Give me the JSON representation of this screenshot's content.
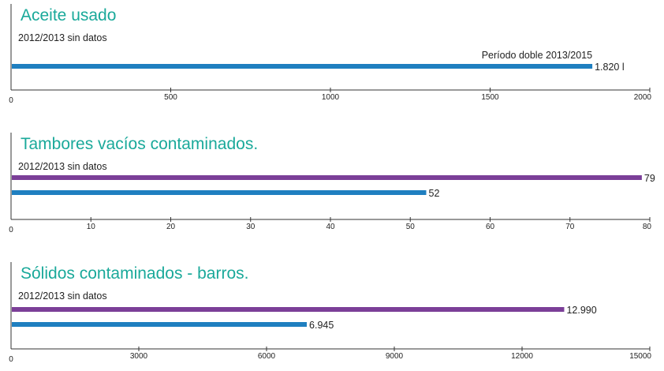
{
  "colors": {
    "title": "#1aa99a",
    "blue": "#1f7fc0",
    "purple": "#7b3f98",
    "axis": "#333333"
  },
  "chart_data": [
    {
      "type": "bar",
      "orientation": "horizontal",
      "title": "Aceite usado",
      "note": "2012/2013 sin datos",
      "xlim": [
        0,
        2000
      ],
      "ticks": [
        {
          "value": 0,
          "label": "0"
        },
        {
          "value": 500,
          "label": "500"
        },
        {
          "value": 1000,
          "label": "1000"
        },
        {
          "value": 1500,
          "label": "1500"
        },
        {
          "value": 2000,
          "label": "2000"
        }
      ],
      "bars": [
        {
          "value": 1820,
          "label": "1.820 l",
          "color": "#1f7fc0",
          "annotation": "Período doble 2013/2015"
        }
      ]
    },
    {
      "type": "bar",
      "orientation": "horizontal",
      "title": "Tambores vacíos contaminados.",
      "note": "2012/2013 sin datos",
      "xlim": [
        0,
        80
      ],
      "ticks": [
        {
          "value": 0,
          "label": "0"
        },
        {
          "value": 10,
          "label": "10"
        },
        {
          "value": 20,
          "label": "20"
        },
        {
          "value": 30,
          "label": "30"
        },
        {
          "value": 40,
          "label": "40"
        },
        {
          "value": 50,
          "label": "50"
        },
        {
          "value": 60,
          "label": "60"
        },
        {
          "value": 70,
          "label": "70"
        },
        {
          "value": 80,
          "label": "80"
        }
      ],
      "bars": [
        {
          "value": 79,
          "label": "79",
          "color": "#7b3f98"
        },
        {
          "value": 52,
          "label": "52",
          "color": "#1f7fc0"
        }
      ]
    },
    {
      "type": "bar",
      "orientation": "horizontal",
      "title": "Sólidos contaminados - barros.",
      "note": "2012/2013 sin datos",
      "xlim": [
        0,
        15000
      ],
      "ticks": [
        {
          "value": 0,
          "label": "0"
        },
        {
          "value": 3000,
          "label": "3000"
        },
        {
          "value": 6000,
          "label": "6000"
        },
        {
          "value": 9000,
          "label": "9000"
        },
        {
          "value": 12000,
          "label": "12000"
        },
        {
          "value": 15000,
          "label": "15000"
        }
      ],
      "bars": [
        {
          "value": 12990,
          "label": "12.990",
          "color": "#7b3f98"
        },
        {
          "value": 6945,
          "label": "6.945",
          "color": "#1f7fc0"
        }
      ]
    }
  ]
}
